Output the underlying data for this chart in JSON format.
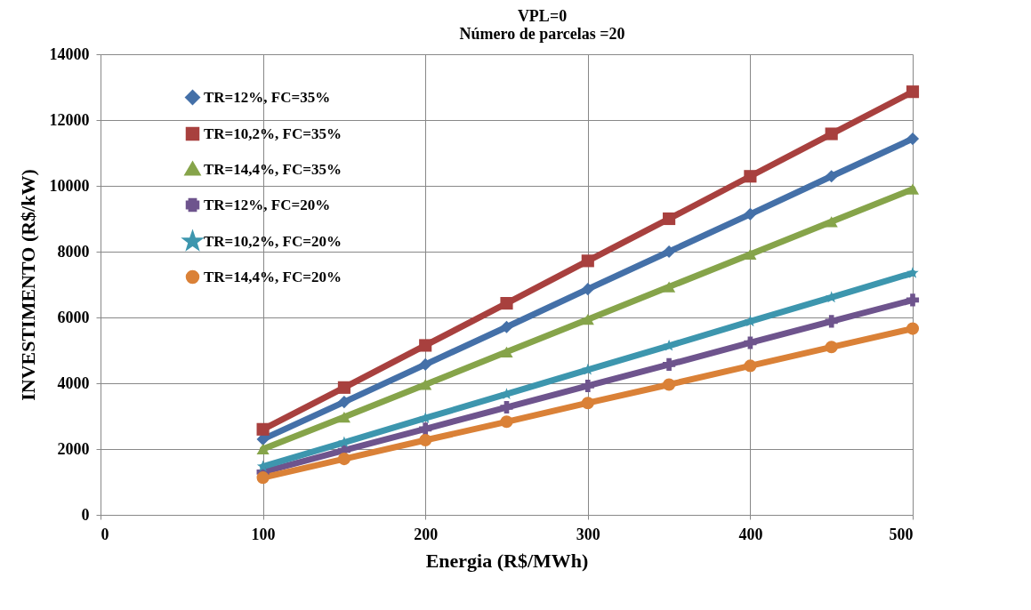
{
  "chart_data": {
    "type": "line",
    "title": "VPL=0",
    "subtitle": "Número de parcelas =20",
    "xlabel": "Energia (R$/MWh)",
    "ylabel": "INVESTIMENTO (R$/kW)",
    "x": [
      100,
      150,
      200,
      250,
      300,
      350,
      400,
      450,
      500
    ],
    "series": [
      {
        "name": "TR=12%, FC=35%",
        "color": "#4470a8",
        "marker": "diamond",
        "values": [
          2300,
          3430,
          4570,
          5710,
          6860,
          8000,
          9140,
          10290,
          11430
        ]
      },
      {
        "name": "TR=10,2%, FC=35%",
        "color": "#a8403e",
        "marker": "square",
        "values": [
          2600,
          3870,
          5150,
          6430,
          7720,
          9000,
          10290,
          11580,
          12860
        ]
      },
      {
        "name": "TR=14,4%, FC=35%",
        "color": "#86a44a",
        "marker": "triangle",
        "values": [
          2000,
          2970,
          3960,
          4950,
          5940,
          6930,
          7920,
          8910,
          9900
        ]
      },
      {
        "name": "TR=12%, FC=20%",
        "color": "#6e548d",
        "marker": "cross",
        "values": [
          1300,
          1960,
          2610,
          3270,
          3920,
          4570,
          5230,
          5880,
          6530
        ]
      },
      {
        "name": "TR=10,2%, FC=20%",
        "color": "#3d96ae",
        "marker": "star",
        "values": [
          1470,
          2200,
          2940,
          3670,
          4410,
          5140,
          5880,
          6610,
          7350
        ]
      },
      {
        "name": "TR=14,4%, FC=20%",
        "color": "#da8137",
        "marker": "circle",
        "values": [
          1130,
          1700,
          2270,
          2830,
          3400,
          3960,
          4530,
          5100,
          5660
        ]
      }
    ],
    "xlim": [
      0,
      500
    ],
    "xticks": [
      0,
      100,
      200,
      300,
      400,
      500
    ],
    "ylim": [
      0,
      14000
    ],
    "yticks": [
      0,
      2000,
      4000,
      6000,
      8000,
      10000,
      12000,
      14000
    ],
    "grid": true,
    "legend": "top left",
    "line_style": "solid"
  }
}
